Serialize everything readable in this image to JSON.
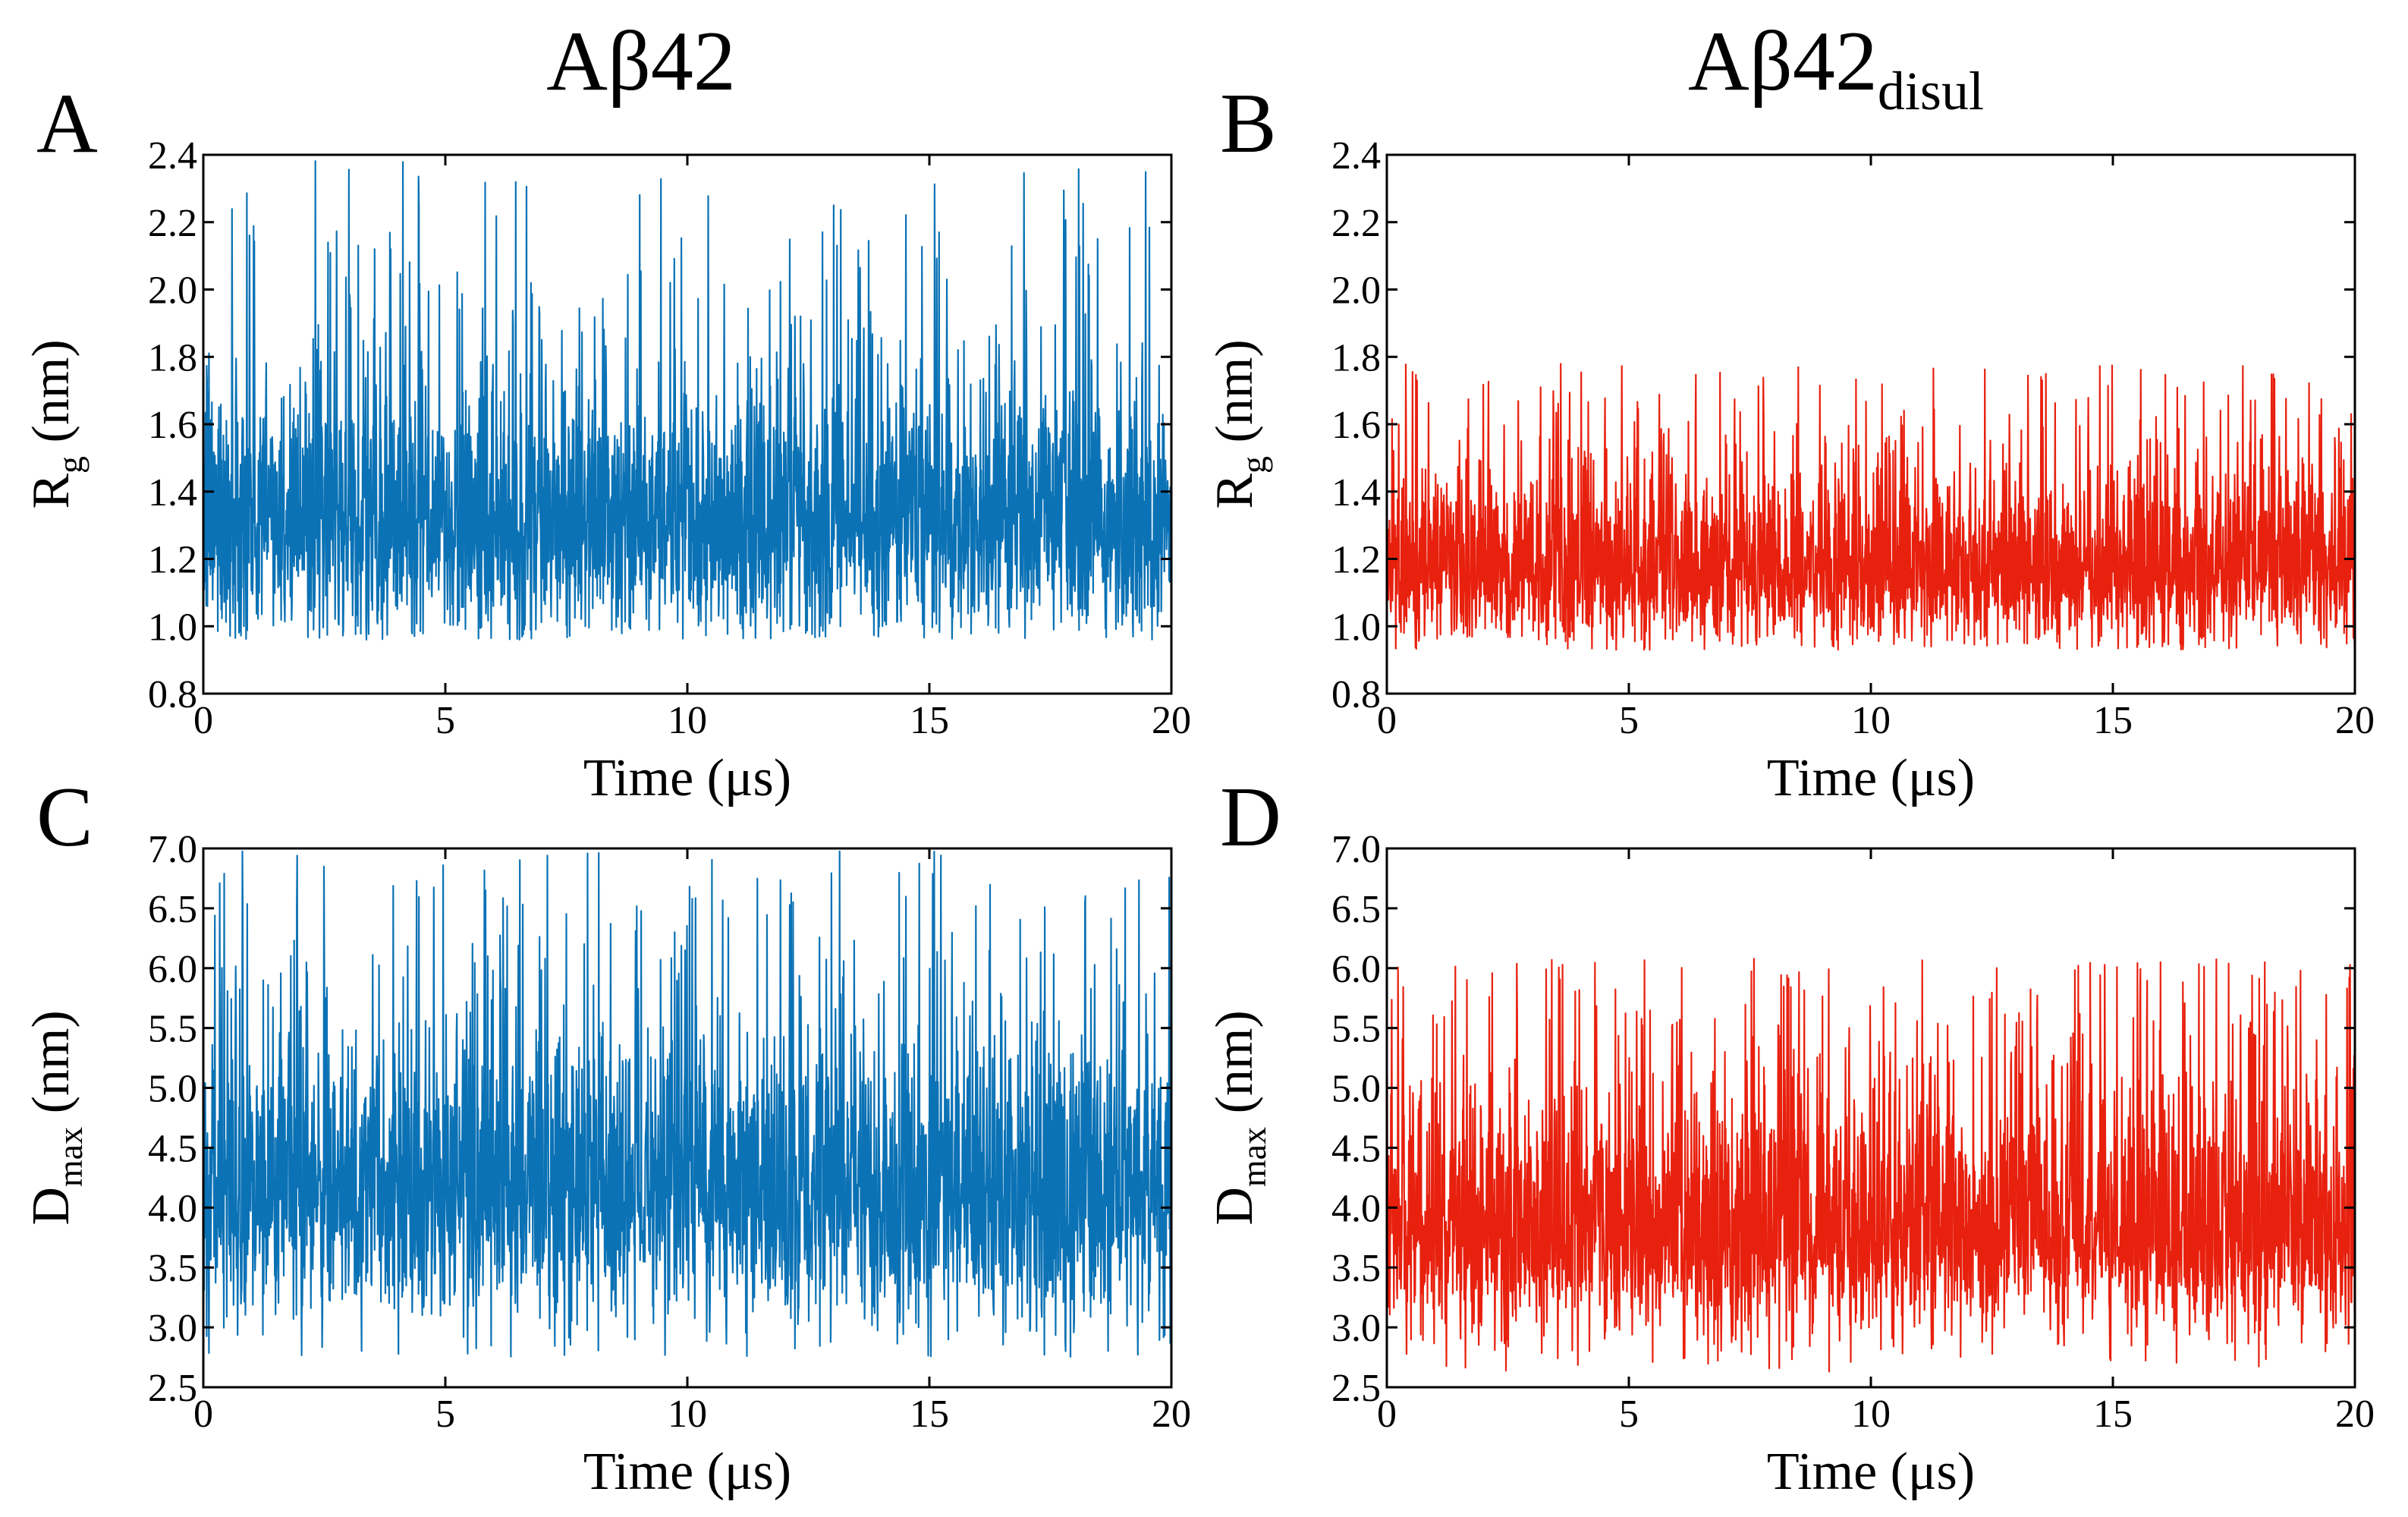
{
  "figure": {
    "column_titles": [
      {
        "main": "Aβ42",
        "sub": ""
      },
      {
        "main": "Aβ42",
        "sub": "disul"
      }
    ]
  },
  "colors": {
    "Aβ42": "#0b72b5",
    "Aβ42disul": "#e8200e"
  },
  "chart_data": [
    {
      "id": "A",
      "panel_label": "A",
      "type": "line",
      "xlabel": "Time (μs)",
      "ylabel": {
        "main": "R",
        "sub": "g",
        "unit": " (nm)"
      },
      "xlim": [
        0,
        20
      ],
      "ylim": [
        0.8,
        2.4
      ],
      "xticks": [
        "0",
        "5",
        "10",
        "15",
        "20"
      ],
      "yticks": [
        "0.8",
        "1.0",
        "1.2",
        "1.4",
        "1.6",
        "1.8",
        "2.0",
        "2.2",
        "2.4"
      ],
      "series": [
        {
          "color": "#0b72b5",
          "x": [
            0,
            20
          ],
          "mean": 1.31,
          "dense_band": [
            1.08,
            1.58
          ],
          "typical_peak": 1.9,
          "typical_trough": 1.02,
          "max": 2.4,
          "min": 0.96
        }
      ]
    },
    {
      "id": "B",
      "panel_label": "B",
      "type": "line",
      "xlabel": "Time (μs)",
      "ylabel": {
        "main": "R",
        "sub": "g",
        "unit": " (nm)"
      },
      "xlim": [
        0,
        20
      ],
      "ylim": [
        0.8,
        2.4
      ],
      "xticks": [
        "0",
        "5",
        "10",
        "15",
        "20"
      ],
      "yticks": [
        "0.8",
        "1.0",
        "1.2",
        "1.4",
        "1.6",
        "1.8",
        "2.0",
        "2.2",
        "2.4"
      ],
      "series": [
        {
          "color": "#e8200e",
          "x": [
            0,
            20
          ],
          "mean": 1.17,
          "dense_band": [
            1.02,
            1.36
          ],
          "typical_peak": 1.55,
          "typical_trough": 0.98,
          "max": 1.78,
          "min": 0.93
        }
      ]
    },
    {
      "id": "C",
      "panel_label": "C",
      "type": "line",
      "xlabel": "Time (μs)",
      "ylabel": {
        "main": "D",
        "sub": "max",
        "unit": " (nm)"
      },
      "xlim": [
        0,
        20
      ],
      "ylim": [
        2.5,
        7.0
      ],
      "xticks": [
        "0",
        "5",
        "10",
        "15",
        "20"
      ],
      "yticks": [
        "2.5",
        "3.0",
        "3.5",
        "4.0",
        "4.5",
        "5.0",
        "5.5",
        "6.0",
        "6.5",
        "7.0"
      ],
      "series": [
        {
          "color": "#0b72b5",
          "x": [
            0,
            20
          ],
          "mean": 4.15,
          "dense_band": [
            3.4,
            5.0
          ],
          "typical_peak": 6.2,
          "typical_trough": 3.05,
          "max": 7.0,
          "min": 2.75
        }
      ]
    },
    {
      "id": "D",
      "panel_label": "D",
      "type": "line",
      "xlabel": "Time (μs)",
      "ylabel": {
        "main": "D",
        "sub": "max",
        "unit": " (nm)"
      },
      "xlim": [
        0,
        20
      ],
      "ylim": [
        2.5,
        7.0
      ],
      "xticks": [
        "0",
        "5",
        "10",
        "15",
        "20"
      ],
      "yticks": [
        "2.5",
        "3.0",
        "3.5",
        "4.0",
        "4.5",
        "5.0",
        "5.5",
        "6.0",
        "6.5",
        "7.0"
      ],
      "series": [
        {
          "color": "#e8200e",
          "x": [
            0,
            20
          ],
          "mean": 3.75,
          "dense_band": [
            3.2,
            4.6
          ],
          "typical_peak": 5.5,
          "typical_trough": 2.95,
          "max": 6.1,
          "min": 2.6
        }
      ]
    }
  ]
}
